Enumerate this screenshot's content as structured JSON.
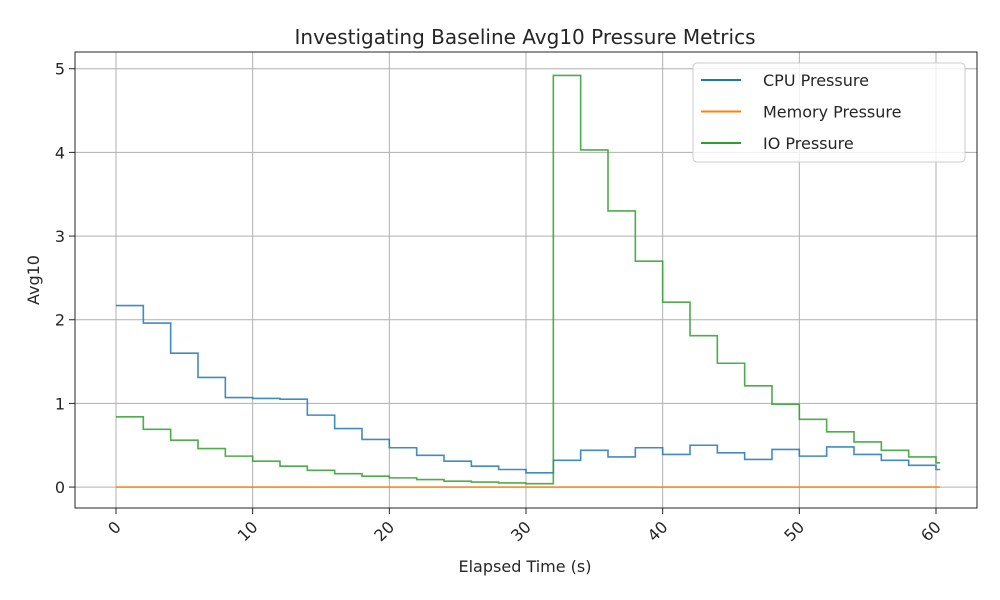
{
  "chart_data": {
    "type": "line",
    "title": "Investigating Baseline Avg10 Pressure Metrics",
    "xlabel": "Elapsed Time (s)",
    "ylabel": "Avg10",
    "xlim": [
      -3,
      63
    ],
    "ylim": [
      -0.25,
      5.2
    ],
    "xticks": [
      0,
      10,
      20,
      30,
      40,
      50,
      60
    ],
    "yticks": [
      0,
      1,
      2,
      3,
      4,
      5
    ],
    "grid": true,
    "legend_position": "top-right",
    "x": [
      0,
      2,
      4,
      6,
      8,
      10,
      12,
      14,
      16,
      18,
      20,
      22,
      24,
      26,
      28,
      30,
      32,
      34,
      36,
      38,
      40,
      42,
      44,
      46,
      48,
      50,
      52,
      54,
      56,
      58,
      60,
      60.3
    ],
    "series": [
      {
        "name": "CPU Pressure",
        "color": "#1f77b4",
        "values": [
          2.17,
          1.96,
          1.6,
          1.31,
          1.07,
          1.06,
          1.05,
          0.86,
          0.7,
          0.57,
          0.47,
          0.38,
          0.31,
          0.25,
          0.21,
          0.17,
          0.32,
          0.44,
          0.36,
          0.47,
          0.39,
          0.5,
          0.41,
          0.33,
          0.45,
          0.37,
          0.48,
          0.39,
          0.32,
          0.26,
          0.21,
          0.21
        ]
      },
      {
        "name": "Memory Pressure",
        "color": "#ff7f0e",
        "values": [
          0,
          0,
          0,
          0,
          0,
          0,
          0,
          0,
          0,
          0,
          0,
          0,
          0,
          0,
          0,
          0,
          0,
          0,
          0,
          0,
          0,
          0,
          0,
          0,
          0,
          0,
          0,
          0,
          0,
          0,
          0,
          0
        ]
      },
      {
        "name": "IO Pressure",
        "color": "#2ca02c",
        "values": [
          0.84,
          0.69,
          0.56,
          0.46,
          0.37,
          0.31,
          0.25,
          0.2,
          0.16,
          0.13,
          0.11,
          0.09,
          0.07,
          0.06,
          0.05,
          0.04,
          4.92,
          4.03,
          3.3,
          2.7,
          2.21,
          1.81,
          1.48,
          1.21,
          0.99,
          0.81,
          0.66,
          0.54,
          0.44,
          0.36,
          0.29,
          0.29
        ]
      }
    ]
  }
}
